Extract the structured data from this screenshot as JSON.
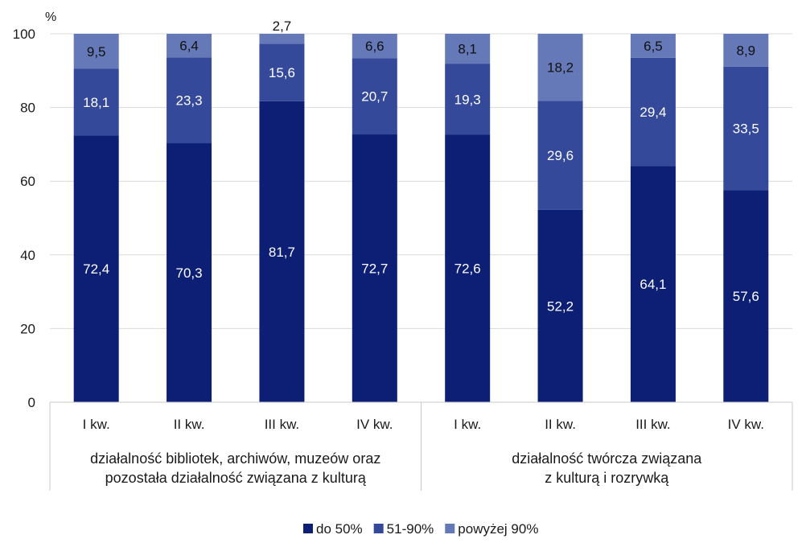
{
  "chart_data": {
    "type": "bar",
    "stacked": true,
    "unit": "%",
    "ylim": [
      0,
      100
    ],
    "yticks": [
      0,
      20,
      40,
      60,
      80,
      100
    ],
    "grid": true,
    "legend_position": "bottom",
    "groups": [
      {
        "label": "działalność bibliotek, archiwów, muzeów oraz\npozostała działalność związana z kulturą",
        "categories": [
          "I kw.",
          "II kw.",
          "III kw.",
          "IV kw."
        ]
      },
      {
        "label": "działalność twórcza związana\nz kulturą i rozrywką",
        "categories": [
          "I kw.",
          "II kw.",
          "III kw.",
          "IV kw."
        ]
      }
    ],
    "series": [
      {
        "name": "do 50%",
        "color": "#0d1f75",
        "label_color": "#ffffff",
        "values": [
          72.4,
          70.3,
          81.7,
          72.7,
          72.6,
          52.2,
          64.1,
          57.6
        ],
        "labels": [
          "72,4",
          "70,3",
          "81,7",
          "72,7",
          "72,6",
          "52,2",
          "64,1",
          "57,6"
        ]
      },
      {
        "name": "51-90%",
        "color": "#34499a",
        "label_color": "#ffffff",
        "values": [
          18.1,
          23.3,
          15.6,
          20.7,
          19.3,
          29.6,
          29.4,
          33.5
        ],
        "labels": [
          "18,1",
          "23,3",
          "15,6",
          "20,7",
          "19,3",
          "29,6",
          "29,4",
          "33,5"
        ]
      },
      {
        "name": "powyżej 90%",
        "color": "#6578b8",
        "label_color": "#111111",
        "values": [
          9.5,
          6.4,
          2.7,
          6.6,
          8.1,
          18.2,
          6.5,
          8.9
        ],
        "labels": [
          "9,5",
          "6,4",
          "2,7",
          "6,6",
          "8,1",
          "18,2",
          "6,5",
          "8,9"
        ]
      }
    ]
  }
}
